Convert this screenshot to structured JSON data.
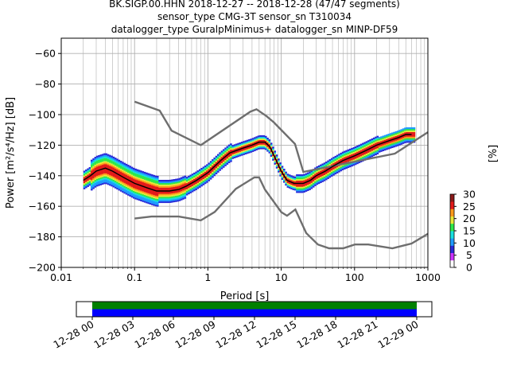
{
  "title_lines": [
    "BK.SIGP.00.HHN   2018-12-27 -- 2018-12-28  (47/47 segments)",
    "sensor_type CMG-3T sensor_sn T310034",
    "datalogger_type GuralpMinimus+ datalogger_sn MINP-DF59"
  ],
  "chart_data": {
    "type": "heatmap",
    "xlabel": "Period [s]",
    "ylabel": "Power [m²/s⁴/Hz] [dB]",
    "xscale": "log",
    "xlim": [
      0.01,
      1000
    ],
    "ylim": [
      -200,
      -50
    ],
    "x_ticks": [
      0.01,
      0.1,
      1,
      10,
      100,
      1000
    ],
    "x_tick_labels": [
      "0.01",
      "0.1",
      "1",
      "10",
      "100",
      "1000"
    ],
    "y_ticks": [
      -200,
      -180,
      -160,
      -140,
      -120,
      -100,
      -80,
      -60
    ],
    "y_tick_labels": [
      "−200",
      "−180",
      "−160",
      "−140",
      "−120",
      "−100",
      "−80",
      "−60"
    ],
    "grid": true,
    "colorbar": {
      "label": "[%]",
      "ticks": [
        0,
        5,
        10,
        15,
        20,
        25,
        30
      ],
      "range": [
        0,
        30
      ]
    },
    "noise_models": [
      {
        "name": "NHNM",
        "x": [
          0.1,
          0.22,
          0.32,
          0.8,
          3.8,
          4.6,
          6.3,
          7.9,
          15.4,
          20,
          354.8,
          1000
        ],
        "y": [
          -91.5,
          -97.4,
          -110.5,
          -120,
          -98,
          -96.5,
          -101,
          -105,
          -119.2,
          -137.5,
          -125.5,
          -111.5
        ]
      },
      {
        "name": "NLNM",
        "x": [
          0.1,
          0.17,
          0.4,
          0.8,
          1.24,
          2.4,
          4.3,
          5.0,
          6.0,
          10.0,
          12.0,
          15.6,
          21.9,
          31.6,
          45,
          70,
          101,
          154,
          328,
          600,
          1000
        ],
        "y": [
          -168,
          -166.7,
          -166.7,
          -169.2,
          -163.7,
          -148.6,
          -141.1,
          -141.1,
          -149,
          -163.8,
          -166.2,
          -162.1,
          -177.5,
          -185,
          -187.5,
          -187.5,
          -185,
          -185,
          -187.5,
          -184.4,
          -178
        ]
      }
    ],
    "median": {
      "x": [
        0.02,
        0.025,
        0.03,
        0.04,
        0.05,
        0.07,
        0.1,
        0.15,
        0.2,
        0.3,
        0.4,
        0.5,
        0.7,
        1,
        1.5,
        2,
        3,
        4,
        5,
        6,
        7,
        8,
        10,
        12,
        15,
        20,
        25,
        30,
        40,
        50,
        70,
        100,
        150,
        200,
        300,
        400,
        500,
        600
      ],
      "y": [
        -143,
        -140,
        -137,
        -135,
        -137,
        -141,
        -145,
        -148,
        -150,
        -150,
        -149,
        -147,
        -143,
        -138,
        -130,
        -125,
        -122,
        -120,
        -118,
        -118,
        -121,
        -127,
        -137,
        -143,
        -145,
        -145,
        -143,
        -140,
        -137,
        -134,
        -130,
        -127,
        -123,
        -120,
        -117,
        -115,
        -113,
        -113
      ]
    },
    "timeline": {
      "tick_labels": [
        "12-28 00",
        "12-28 03",
        "12-28 06",
        "12-28 09",
        "12-28 12",
        "12-28 15",
        "12-28 18",
        "12-28 21",
        "12-29 00"
      ]
    }
  }
}
